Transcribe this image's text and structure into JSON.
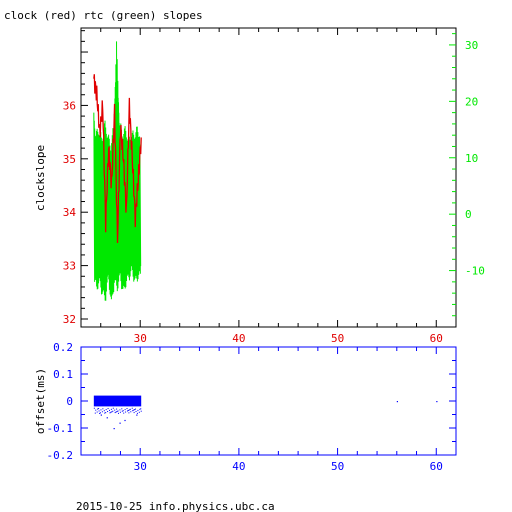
{
  "title": "clock (red) rtc (green) slopes",
  "footer": "2015-10-25 info.physics.ubc.ca",
  "colors": {
    "red": "#e00000",
    "green": "#00e800",
    "blue": "#0000ff",
    "axis": "#000000"
  },
  "chart_data": [
    {
      "type": "line",
      "title": "clock (red) rtc (green) slopes",
      "xlim": [
        24,
        62
      ],
      "x_ticks": [
        30,
        40,
        50,
        60
      ],
      "ylabel": "clockslope",
      "ylim_left": [
        31.85,
        37.45
      ],
      "left_ticks": [
        32,
        33,
        34,
        35,
        36
      ],
      "ylim_right": [
        -20,
        33
      ],
      "right_ticks": [
        -10,
        0,
        10,
        20,
        30
      ],
      "series": [
        {
          "name": "clock",
          "axis": "left",
          "color": "#e00000",
          "x": [
            25.3,
            25.6,
            25.9,
            26.2,
            26.5,
            26.8,
            27.1,
            27.4,
            27.7,
            28.0,
            28.3,
            28.6,
            28.9,
            29.2,
            29.5,
            29.8,
            30.1
          ],
          "y": [
            36.5,
            36.2,
            35.5,
            36.0,
            33.8,
            35.2,
            34.5,
            35.9,
            33.5,
            35.6,
            35.0,
            34.0,
            36.0,
            35.0,
            33.9,
            34.6,
            35.4
          ]
        },
        {
          "name": "rtc",
          "axis": "right",
          "color": "#00e800",
          "x": [
            25.3,
            25.5,
            25.8,
            26.1,
            26.4,
            26.7,
            27.0,
            27.3,
            27.6,
            27.9,
            28.2,
            28.5,
            28.8,
            29.1,
            29.4,
            29.7,
            30.0
          ],
          "y_min": [
            -12,
            -14,
            -13,
            -15,
            -16,
            -12,
            -17,
            -13,
            -14,
            -12,
            -15,
            -13,
            -12,
            -11,
            -13,
            -12,
            -12
          ],
          "y_max": [
            18,
            15,
            16,
            14,
            17,
            15,
            13,
            16,
            31,
            17,
            15,
            16,
            14,
            15,
            15,
            16,
            15
          ]
        }
      ]
    },
    {
      "type": "scatter",
      "ylabel": "offset(ms)",
      "xlim": [
        24,
        62
      ],
      "x_ticks": [
        30,
        40,
        50,
        60
      ],
      "ylim": [
        -0.2,
        0.2
      ],
      "y_ticks": [
        "0.2",
        "0.1",
        "0",
        "-0.1",
        "-0.2"
      ],
      "color": "#0000ff",
      "band": {
        "x_range": [
          25.3,
          30.1
        ],
        "y_range": [
          -0.02,
          0.02
        ]
      },
      "sparse_points": [
        {
          "x": 26.0,
          "y": -0.05
        },
        {
          "x": 26.6,
          "y": -0.06
        },
        {
          "x": 27.3,
          "y": -0.1
        },
        {
          "x": 28.4,
          "y": -0.07
        },
        {
          "x": 29.6,
          "y": -0.05
        },
        {
          "x": 27.9,
          "y": -0.08
        },
        {
          "x": 56.0,
          "y": 0.0
        },
        {
          "x": 60.0,
          "y": 0.0
        }
      ]
    }
  ]
}
